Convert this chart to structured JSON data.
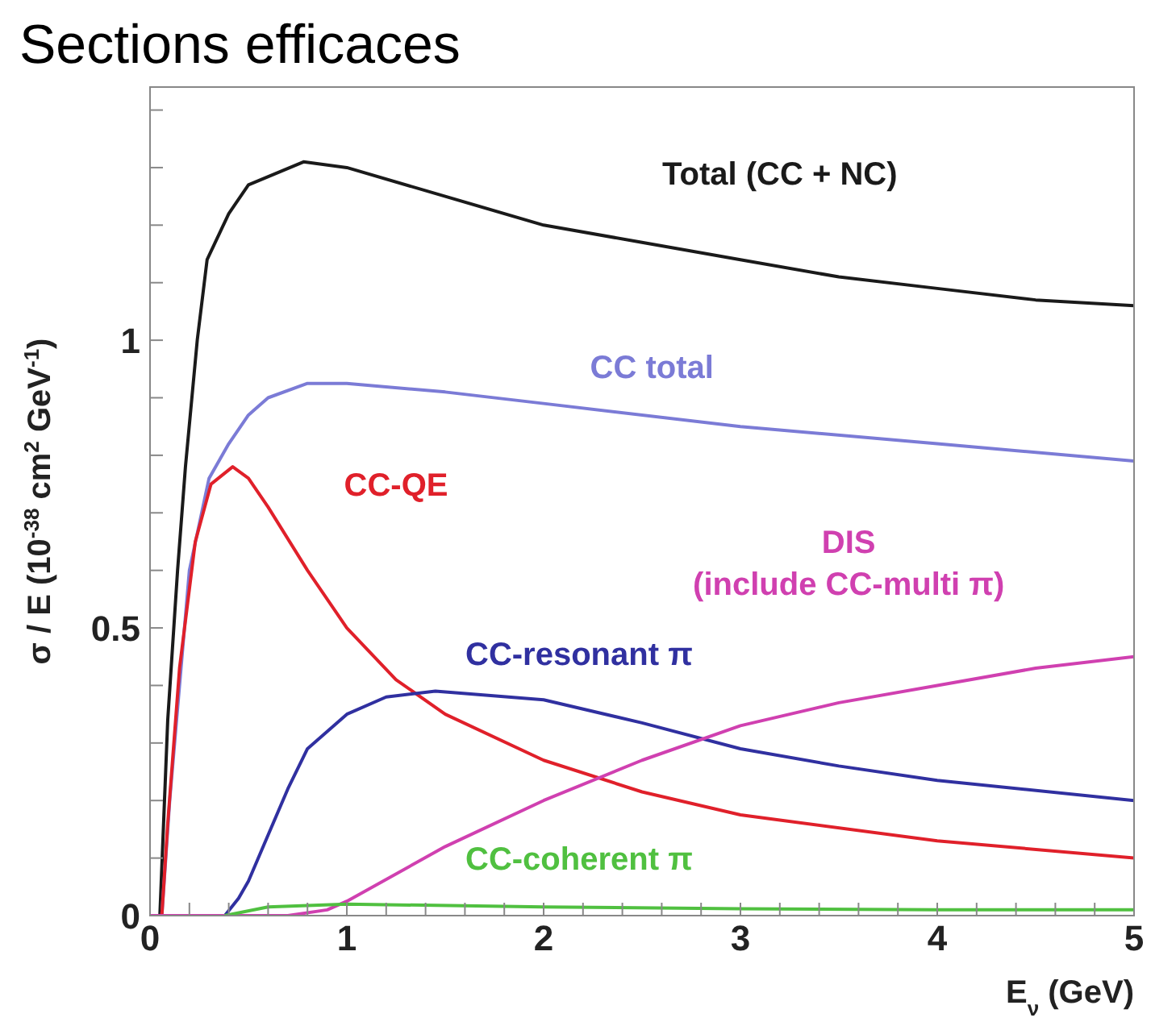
{
  "chart_data": {
    "type": "line",
    "title": "Sections efficaces",
    "xlabel": "E$_{ν}$ (GeV)",
    "ylabel": "σ / E (10$^{-38}$ cm$^{2}$ GeV$^{-1}$)",
    "xlim": [
      0,
      5
    ],
    "ylim": [
      0,
      1.44
    ],
    "xticks": [
      0,
      {
        "value": 0.2,
        "label": null
      },
      {
        "value": 0.4,
        "label": null
      },
      {
        "value": 0.6,
        "label": null
      },
      {
        "value": 0.8,
        "label": null
      },
      1,
      {
        "value": 1.2,
        "label": null
      },
      {
        "value": 1.4,
        "label": null
      },
      {
        "value": 1.6,
        "label": null
      },
      {
        "value": 1.8,
        "label": null
      },
      2,
      {
        "value": 2.2,
        "label": null
      },
      {
        "value": 2.4,
        "label": null
      },
      {
        "value": 2.6,
        "label": null
      },
      {
        "value": 2.8,
        "label": null
      },
      3,
      {
        "value": 3.2,
        "label": null
      },
      {
        "value": 3.4,
        "label": null
      },
      {
        "value": 3.6,
        "label": null
      },
      {
        "value": 3.8,
        "label": null
      },
      4,
      {
        "value": 4.2,
        "label": null
      },
      {
        "value": 4.4,
        "label": null
      },
      {
        "value": 4.6,
        "label": null
      },
      {
        "value": 4.8,
        "label": null
      },
      5
    ],
    "yticks": [
      0,
      {
        "value": 0.1,
        "label": null
      },
      {
        "value": 0.2,
        "label": null
      },
      {
        "value": 0.3,
        "label": null
      },
      {
        "value": 0.4,
        "label": null
      },
      0.5,
      {
        "value": 0.6,
        "label": null
      },
      {
        "value": 0.7,
        "label": null
      },
      {
        "value": 0.8,
        "label": null
      },
      {
        "value": 0.9,
        "label": null
      },
      1,
      {
        "value": 1.1,
        "label": null
      },
      {
        "value": 1.2,
        "label": null
      },
      {
        "value": 1.3,
        "label": null
      },
      {
        "value": 1.4,
        "label": null
      }
    ],
    "legend": false,
    "series": [
      {
        "name": "Total (CC + NC)",
        "color": "#1a1a1a",
        "x": [
          0.05,
          0.09,
          0.14,
          0.18,
          0.24,
          0.29,
          0.4,
          0.5,
          0.78,
          1,
          1.5,
          2,
          2.5,
          3,
          3.5,
          4,
          4.5,
          5
        ],
        "values": [
          0,
          0.34,
          0.6,
          0.78,
          1.0,
          1.14,
          1.22,
          1.27,
          1.31,
          1.3,
          1.25,
          1.2,
          1.17,
          1.14,
          1.11,
          1.09,
          1.07,
          1.06
        ]
      },
      {
        "name": "CC total",
        "color": "#7b7bd6",
        "x": [
          0.06,
          0.1,
          0.2,
          0.3,
          0.4,
          0.5,
          0.6,
          0.8,
          1,
          1.5,
          2,
          3,
          4,
          5
        ],
        "values": [
          0,
          0.2,
          0.6,
          0.76,
          0.82,
          0.87,
          0.9,
          0.925,
          0.925,
          0.91,
          0.89,
          0.85,
          0.82,
          0.79
        ]
      },
      {
        "name": "CC-QE",
        "color": "#e0202a",
        "x": [
          0.06,
          0.09,
          0.15,
          0.23,
          0.31,
          0.42,
          0.5,
          0.6,
          0.8,
          1,
          1.25,
          1.5,
          2,
          2.5,
          3,
          4,
          5
        ],
        "values": [
          0,
          0.16,
          0.43,
          0.65,
          0.75,
          0.78,
          0.76,
          0.71,
          0.6,
          0.5,
          0.41,
          0.35,
          0.27,
          0.215,
          0.175,
          0.13,
          0.1
        ]
      },
      {
        "name": "CC-resonant π",
        "color": "#3030a0",
        "x": [
          0.38,
          0.45,
          0.5,
          0.6,
          0.7,
          0.8,
          1,
          1.2,
          1.45,
          2,
          2.5,
          3,
          3.5,
          4,
          5
        ],
        "values": [
          0,
          0.03,
          0.06,
          0.14,
          0.22,
          0.29,
          0.35,
          0.38,
          0.39,
          0.375,
          0.335,
          0.29,
          0.26,
          0.235,
          0.2
        ]
      },
      {
        "name": "DIS (include CC-multi π)",
        "color": "#d040b0",
        "x": [
          0,
          0.7,
          0.9,
          1,
          1.5,
          2,
          2.5,
          3,
          3.5,
          4,
          4.5,
          5
        ],
        "values": [
          0,
          0,
          0.01,
          0.025,
          0.12,
          0.2,
          0.27,
          0.33,
          0.37,
          0.4,
          0.43,
          0.45
        ]
      },
      {
        "name": "CC-coherent π",
        "color": "#50c040",
        "x": [
          0.38,
          0.6,
          1,
          2,
          3,
          4,
          5
        ],
        "values": [
          0,
          0.015,
          0.02,
          0.015,
          0.012,
          0.01,
          0.01
        ]
      }
    ]
  }
}
